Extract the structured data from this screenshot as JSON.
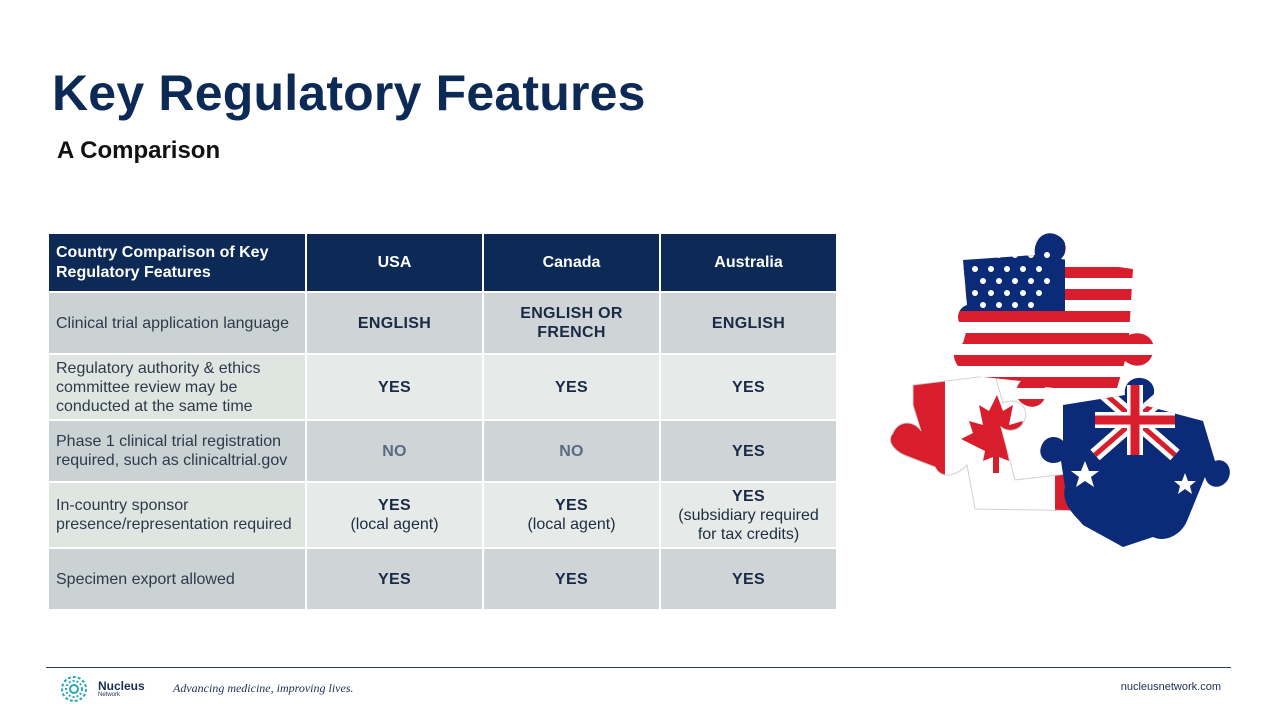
{
  "slide": {
    "title": "Key Regulatory Features",
    "subtitle": "A Comparison"
  },
  "table": {
    "header": {
      "label": "Country Comparison of Key Regulatory Features",
      "countries": [
        "USA",
        "Canada",
        "Australia"
      ]
    },
    "rows": [
      {
        "label": "Clinical trial application language",
        "cells": [
          {
            "value": "ENGLISH",
            "note": ""
          },
          {
            "value": "ENGLISH OR FRENCH",
            "note": ""
          },
          {
            "value": "ENGLISH",
            "note": ""
          }
        ]
      },
      {
        "label": "Regulatory authority & ethics committee review may be conducted at the same time",
        "cells": [
          {
            "value": "YES",
            "note": ""
          },
          {
            "value": "YES",
            "note": ""
          },
          {
            "value": "YES",
            "note": ""
          }
        ]
      },
      {
        "label": "Phase 1 clinical trial registration required, such as clinicaltrial.gov",
        "cells": [
          {
            "value": "NO",
            "note": ""
          },
          {
            "value": "NO",
            "note": ""
          },
          {
            "value": "YES",
            "note": ""
          }
        ]
      },
      {
        "label": "In-country sponsor presence/representation required",
        "cells": [
          {
            "value": "YES",
            "note": "(local agent)"
          },
          {
            "value": "YES",
            "note": "(local agent)"
          },
          {
            "value": "YES",
            "note": "(subsidiary required for tax credits)"
          }
        ]
      },
      {
        "label": "Specimen export allowed",
        "cells": [
          {
            "value": "YES",
            "note": ""
          },
          {
            "value": "YES",
            "note": ""
          },
          {
            "value": "YES",
            "note": ""
          }
        ]
      }
    ]
  },
  "image": {
    "icon": "puzzle-flags-image",
    "flags": [
      "usa",
      "canada",
      "australia"
    ]
  },
  "footer": {
    "logo_name": "Nucleus",
    "logo_sub": "Network",
    "tagline": "Advancing medicine, improving lives.",
    "url": "nucleusnetwork.com"
  },
  "colors": {
    "navy": "#0c2a55",
    "row_dark": "#cfd4d6",
    "row_light": "#e6eae8",
    "flag_red": "#d81e2c",
    "flag_blue": "#0b2a78",
    "logo_teal": "#2aa8b8"
  }
}
